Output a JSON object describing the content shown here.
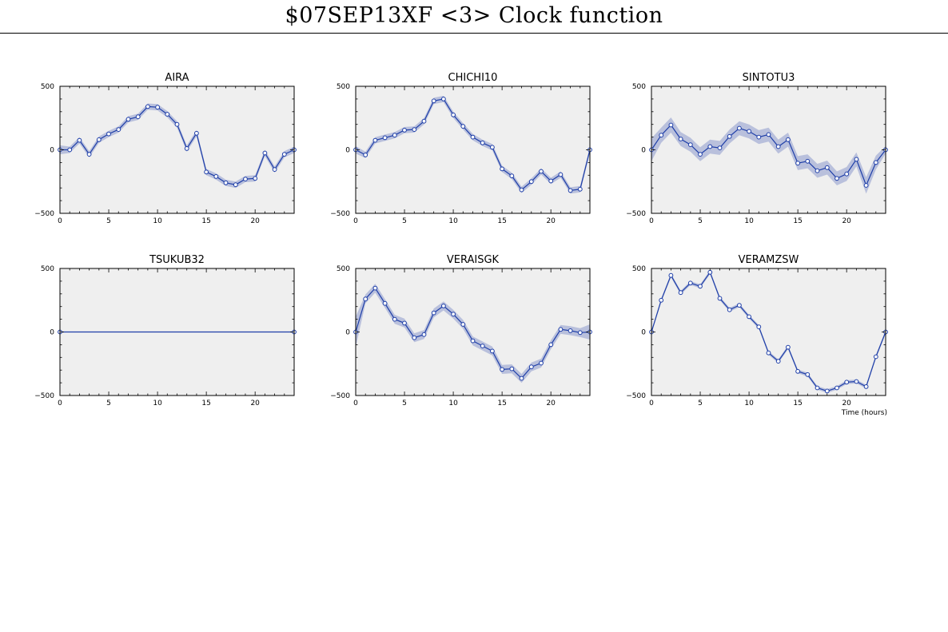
{
  "page": {
    "title": "$07SEP13XF <3>  Clock function"
  },
  "chart_colors": {
    "line": "#1e3ea8",
    "band": "#b9c0dc",
    "plot_bg": "#efefef",
    "marker_fill": "#ffffff"
  },
  "chart_data": [
    {
      "type": "line",
      "title": "AIRA",
      "xlim": [
        0,
        24
      ],
      "ylim": [
        -500,
        500
      ],
      "xticks": [
        "0",
        "5",
        "10",
        "15",
        "20"
      ],
      "yticks": [
        "500",
        "0",
        "−500"
      ],
      "xlabel": "",
      "x": [
        0,
        1,
        2,
        3,
        4,
        5,
        6,
        7,
        8,
        9,
        10,
        11,
        12,
        13,
        14,
        15,
        16,
        17,
        18,
        19,
        20,
        21,
        22,
        23,
        24
      ],
      "y": [
        0,
        0,
        75,
        -35,
        80,
        125,
        160,
        240,
        260,
        340,
        335,
        280,
        200,
        10,
        130,
        -175,
        -210,
        -260,
        -275,
        -230,
        -225,
        -25,
        -155,
        -35,
        0
      ],
      "err": [
        35,
        25,
        25,
        25,
        25,
        25,
        25,
        25,
        25,
        25,
        25,
        25,
        25,
        25,
        25,
        25,
        25,
        25,
        25,
        25,
        25,
        25,
        25,
        25,
        25
      ]
    },
    {
      "type": "line",
      "title": "CHICHI10",
      "xlim": [
        0,
        24
      ],
      "ylim": [
        -500,
        500
      ],
      "xticks": [
        "0",
        "5",
        "10",
        "15",
        "20"
      ],
      "yticks": [
        "500",
        "0",
        "−500"
      ],
      "xlabel": "",
      "x": [
        0,
        1,
        2,
        3,
        4,
        5,
        6,
        7,
        8,
        9,
        10,
        11,
        12,
        13,
        14,
        15,
        16,
        17,
        18,
        19,
        20,
        21,
        22,
        23,
        24
      ],
      "y": [
        0,
        -40,
        75,
        95,
        115,
        155,
        160,
        225,
        385,
        400,
        275,
        185,
        100,
        55,
        20,
        -150,
        -205,
        -315,
        -250,
        -170,
        -245,
        -195,
        -320,
        -310,
        0
      ],
      "err": [
        30,
        25,
        25,
        25,
        25,
        25,
        25,
        25,
        25,
        25,
        25,
        25,
        25,
        25,
        25,
        25,
        25,
        25,
        25,
        25,
        25,
        25,
        25,
        25,
        25
      ]
    },
    {
      "type": "line",
      "title": "SINTOTU3",
      "xlim": [
        0,
        24
      ],
      "ylim": [
        -500,
        500
      ],
      "xticks": [
        "0",
        "5",
        "10",
        "15",
        "20"
      ],
      "yticks": [
        "500",
        "0",
        "−500"
      ],
      "xlabel": "",
      "x": [
        0,
        1,
        2,
        3,
        4,
        5,
        6,
        7,
        8,
        9,
        10,
        11,
        12,
        13,
        14,
        15,
        16,
        17,
        18,
        19,
        20,
        21,
        22,
        23,
        24
      ],
      "y": [
        0,
        115,
        195,
        85,
        40,
        -35,
        25,
        15,
        105,
        170,
        145,
        100,
        120,
        25,
        80,
        -105,
        -90,
        -165,
        -140,
        -225,
        -190,
        -75,
        -280,
        -100,
        0
      ],
      "err": [
        90,
        60,
        60,
        55,
        55,
        55,
        55,
        55,
        55,
        55,
        55,
        55,
        55,
        55,
        55,
        55,
        55,
        55,
        55,
        55,
        55,
        55,
        65,
        55,
        30
      ]
    },
    {
      "type": "line",
      "title": "TSUKUB32",
      "xlim": [
        0,
        24
      ],
      "ylim": [
        -500,
        500
      ],
      "xticks": [
        "0",
        "5",
        "10",
        "15",
        "20"
      ],
      "yticks": [
        "500",
        "0",
        "−500"
      ],
      "xlabel": "",
      "x": [
        0,
        24
      ],
      "y": [
        0,
        0
      ],
      "err": [
        0,
        0
      ]
    },
    {
      "type": "line",
      "title": "VERAISGK",
      "xlim": [
        0,
        24
      ],
      "ylim": [
        -500,
        500
      ],
      "xticks": [
        "0",
        "5",
        "10",
        "15",
        "20"
      ],
      "yticks": [
        "500",
        "0",
        "−500"
      ],
      "xlabel": "",
      "x": [
        0,
        1,
        2,
        3,
        4,
        5,
        6,
        7,
        8,
        9,
        10,
        11,
        12,
        13,
        14,
        15,
        16,
        17,
        18,
        19,
        20,
        21,
        22,
        23,
        24
      ],
      "y": [
        0,
        260,
        345,
        225,
        100,
        70,
        -45,
        -20,
        150,
        205,
        140,
        60,
        -70,
        -110,
        -150,
        -295,
        -290,
        -365,
        -275,
        -245,
        -100,
        20,
        10,
        -5,
        0
      ],
      "err": [
        120,
        35,
        35,
        35,
        35,
        35,
        35,
        35,
        35,
        35,
        35,
        35,
        35,
        35,
        35,
        35,
        35,
        35,
        35,
        35,
        35,
        35,
        35,
        35,
        60
      ]
    },
    {
      "type": "line",
      "title": "VERAMZSW",
      "xlim": [
        0,
        24
      ],
      "ylim": [
        -500,
        500
      ],
      "xticks": [
        "0",
        "5",
        "10",
        "15",
        "20"
      ],
      "yticks": [
        "500",
        "0",
        "−500"
      ],
      "xlabel": "Time (hours)",
      "x": [
        0,
        1,
        2,
        3,
        4,
        5,
        6,
        7,
        8,
        9,
        10,
        11,
        12,
        13,
        14,
        15,
        16,
        17,
        18,
        19,
        20,
        21,
        22,
        23,
        24
      ],
      "y": [
        0,
        250,
        445,
        310,
        385,
        360,
        470,
        265,
        175,
        210,
        120,
        40,
        -165,
        -230,
        -120,
        -310,
        -335,
        -440,
        -465,
        -440,
        -395,
        -390,
        -430,
        -195,
        0
      ],
      "err": [
        15,
        15,
        15,
        15,
        15,
        15,
        15,
        15,
        15,
        15,
        15,
        15,
        15,
        15,
        15,
        15,
        15,
        15,
        15,
        15,
        15,
        15,
        15,
        15,
        15
      ]
    }
  ]
}
